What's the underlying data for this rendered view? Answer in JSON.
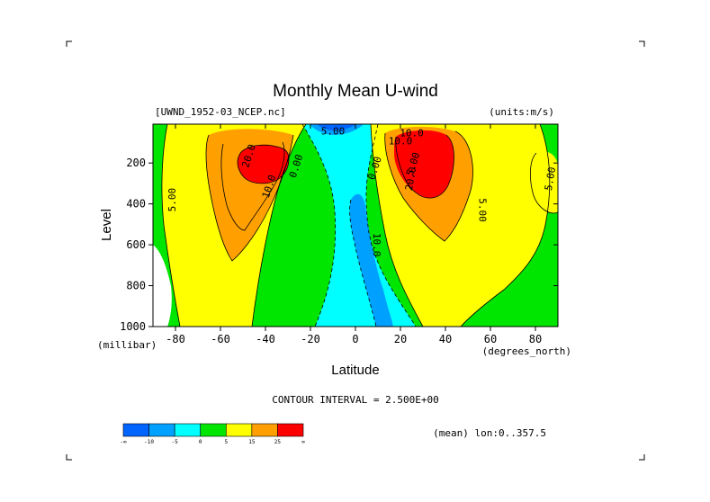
{
  "chart_data": {
    "type": "heatmap",
    "title": "Monthly Mean U-wind",
    "dataset_label": "[UWND_1952-03_NCEP.nc]",
    "units_label": "(units:m/s)",
    "xlabel": "Latitude",
    "ylabel": "Level",
    "x_unit": "(degrees_north)",
    "y_unit": "(millibar)",
    "xlim": [
      -90,
      90
    ],
    "ylim": [
      1000,
      10
    ],
    "x_ticks": [
      -80,
      -60,
      -40,
      -20,
      0,
      20,
      40,
      60,
      80
    ],
    "y_ticks": [
      200,
      400,
      600,
      800,
      1000
    ],
    "contour_interval_text": "CONTOUR INTERVAL = 2.500E+00",
    "footer_text": "(mean) lon:0..357.5",
    "contour_labels": [
      "20.0",
      "10.0",
      "5.00",
      "0.00",
      "5.00",
      "10.0",
      "20.0",
      "10.0",
      "5.00",
      "0.00",
      "5.00",
      "5.00",
      "10.0"
    ],
    "colorbar": {
      "colors": [
        "#0064ff",
        "#00a0ff",
        "#00ffff",
        "#00e600",
        "#ffff00",
        "#ffa000",
        "#ff0000"
      ],
      "labels": [
        "-∞",
        "-10",
        "-5",
        "0",
        "5",
        "15",
        "25",
        "∞"
      ]
    },
    "field_samples": [
      {
        "lat": -40,
        "level": 200,
        "u": 27
      },
      {
        "lat": -60,
        "level": 300,
        "u": 12
      },
      {
        "lat": -80,
        "level": 400,
        "u": 6
      },
      {
        "lat": -45,
        "level": 800,
        "u": 6
      },
      {
        "lat": -10,
        "level": 50,
        "u": -6
      },
      {
        "lat": 0,
        "level": 500,
        "u": -7
      },
      {
        "lat": 5,
        "level": 900,
        "u": -3
      },
      {
        "lat": 27,
        "level": 200,
        "u": 30
      },
      {
        "lat": 30,
        "level": 400,
        "u": 17
      },
      {
        "lat": 45,
        "level": 700,
        "u": 7
      },
      {
        "lat": 78,
        "level": 300,
        "u": 6
      },
      {
        "lat": 85,
        "level": 800,
        "u": 1
      }
    ]
  }
}
